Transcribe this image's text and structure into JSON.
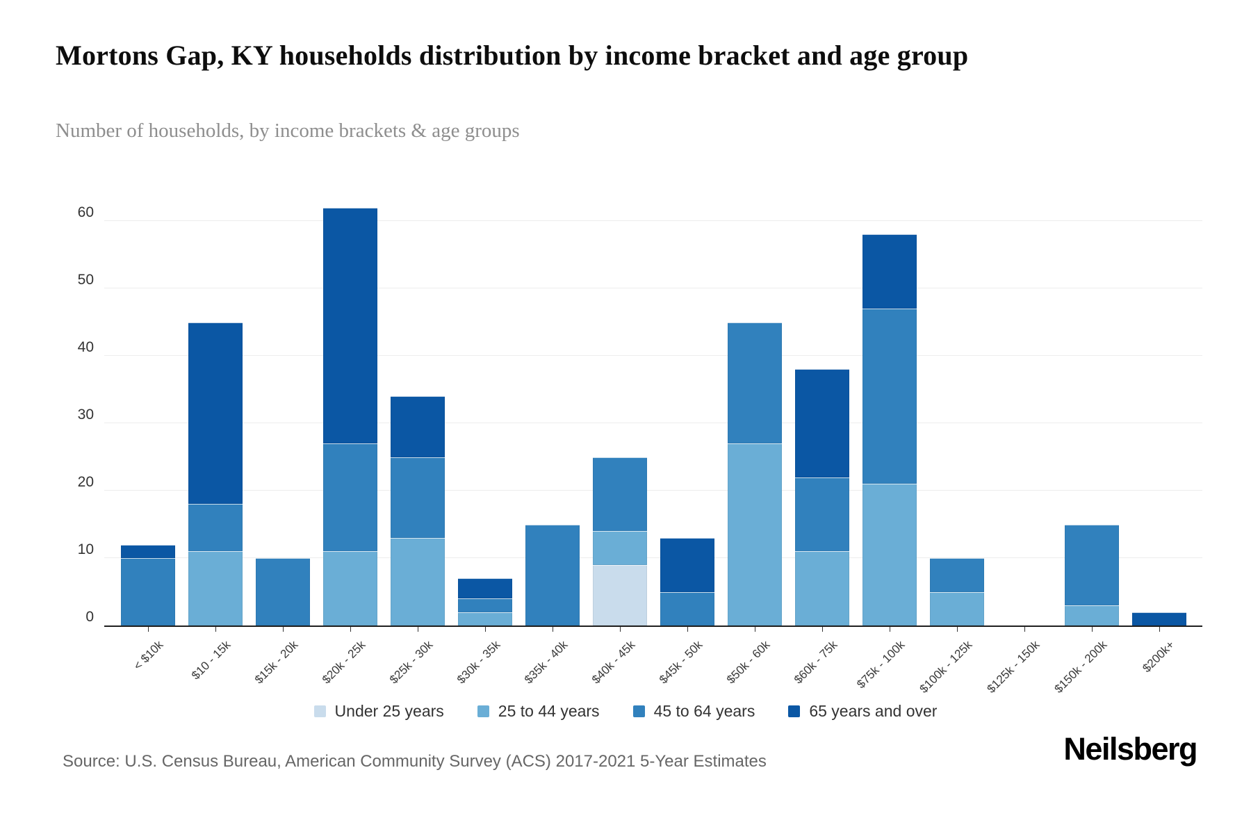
{
  "title": "Mortons Gap, KY households distribution by income bracket and age group",
  "subtitle": "Number of households, by income brackets & age groups",
  "source": "Source: U.S. Census Bureau, American Community Survey (ACS) 2017-2021 5-Year Estimates",
  "brand": "Neilsberg",
  "chart_data": {
    "type": "bar",
    "stacked": true,
    "title": "Mortons Gap, KY households distribution by income bracket and age group",
    "ylabel": "Number of households",
    "categories": [
      "< $10k",
      "$10 - 15k",
      "$15k - 20k",
      "$20k - 25k",
      "$25k - 30k",
      "$30k - 35k",
      "$35k - 40k",
      "$40k - 45k",
      "$45k - 50k",
      "$50k - 60k",
      "$60k - 75k",
      "$75k - 100k",
      "$100k - 125k",
      "$125k - 150k",
      "$150k - 200k",
      "$200k+"
    ],
    "series": [
      {
        "name": "Under 25 years",
        "color": "#c9dcec",
        "values": [
          0,
          0,
          0,
          0,
          0,
          0,
          0,
          9,
          0,
          0,
          0,
          0,
          0,
          0,
          0,
          0
        ]
      },
      {
        "name": "25 to 44 years",
        "color": "#6aaed6",
        "values": [
          0,
          11,
          0,
          11,
          13,
          2,
          0,
          5,
          0,
          27,
          11,
          21,
          5,
          0,
          3,
          0
        ]
      },
      {
        "name": "45 to 64 years",
        "color": "#3181bd",
        "values": [
          10,
          7,
          10,
          16,
          12,
          2,
          15,
          11,
          5,
          18,
          11,
          26,
          5,
          0,
          12,
          0
        ]
      },
      {
        "name": "65 years and over",
        "color": "#0b57a4",
        "values": [
          2,
          27,
          0,
          35,
          9,
          3,
          0,
          0,
          8,
          0,
          16,
          11,
          0,
          0,
          0,
          2
        ]
      }
    ],
    "totals": [
      12,
      45,
      10,
      62,
      34,
      7,
      15,
      25,
      13,
      45,
      38,
      58,
      10,
      0,
      15,
      2
    ],
    "yticks": [
      0,
      10,
      20,
      30,
      40,
      50,
      60
    ],
    "ymax": 66.5,
    "grid": "horizontal",
    "legend_position": "bottom",
    "axis_color": "#1f1f1f",
    "gridline_color": "#ededed"
  }
}
